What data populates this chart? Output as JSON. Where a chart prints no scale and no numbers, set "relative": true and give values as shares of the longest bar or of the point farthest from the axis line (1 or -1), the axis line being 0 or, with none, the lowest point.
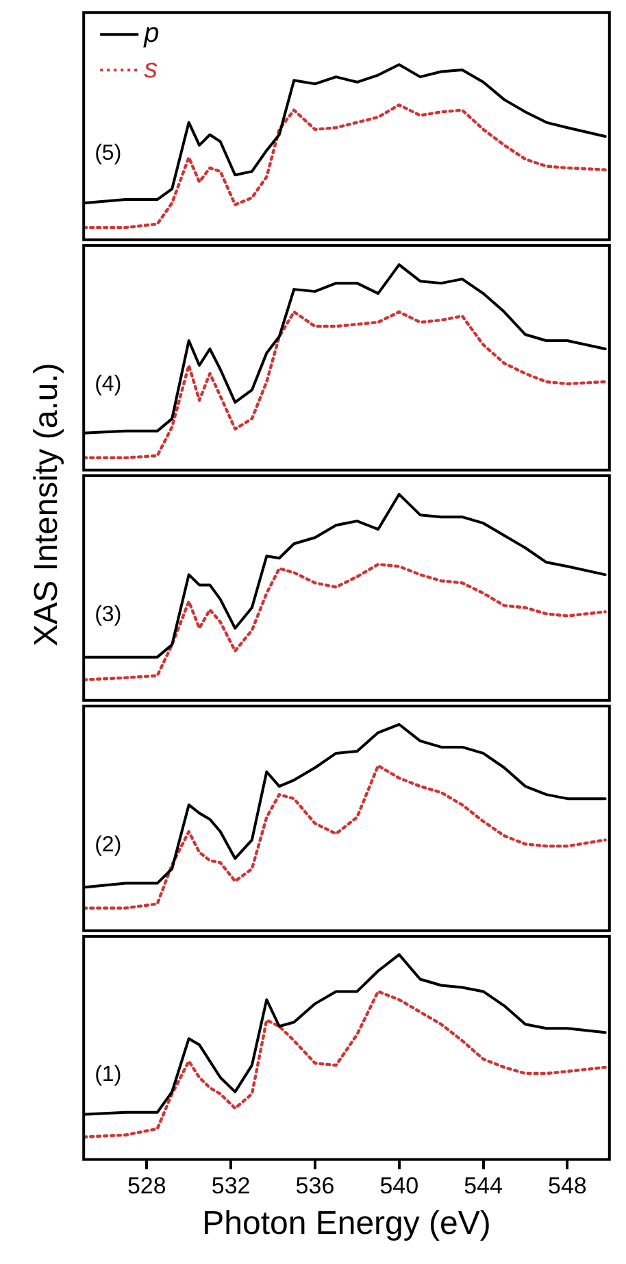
{
  "chart_data": [
    {
      "type": "line",
      "relative": true,
      "legend": "top left",
      "tick_labels": false,
      "marker": "none",
      "xlim": [
        525,
        550
      ],
      "annotations": [
        "(5)"
      ],
      "x": [
        525,
        527,
        528.5,
        529.2,
        530,
        530.5,
        531,
        531.5,
        532.2,
        533,
        533.7,
        534.3,
        535,
        536,
        537,
        538,
        539,
        540,
        541,
        542,
        543,
        544,
        545,
        546,
        547,
        548,
        549.8
      ],
      "series": [
        {
          "name": "p",
          "color": "#000000",
          "line_style": "solid",
          "values": [
            0.21,
            0.23,
            0.23,
            0.29,
            0.67,
            0.54,
            0.6,
            0.56,
            0.37,
            0.39,
            0.51,
            0.6,
            0.91,
            0.89,
            0.93,
            0.9,
            0.94,
            1,
            0.93,
            0.96,
            0.97,
            0.9,
            0.8,
            0.73,
            0.67,
            0.64,
            0.59
          ]
        },
        {
          "name": "s",
          "color": "#d03535",
          "line_style": "dotted",
          "values": [
            0.07,
            0.07,
            0.09,
            0.21,
            0.47,
            0.33,
            0.41,
            0.39,
            0.2,
            0.24,
            0.36,
            0.63,
            0.74,
            0.63,
            0.64,
            0.67,
            0.7,
            0.77,
            0.71,
            0.73,
            0.74,
            0.63,
            0.54,
            0.46,
            0.42,
            0.41,
            0.4
          ]
        }
      ]
    },
    {
      "type": "line",
      "relative": true,
      "tick_labels": false,
      "marker": "none",
      "xlim": [
        525,
        550
      ],
      "annotations": [
        "(4)"
      ],
      "x": [
        525,
        527,
        528.5,
        529.2,
        530,
        530.5,
        531,
        531.5,
        532.2,
        533,
        533.7,
        534.3,
        535,
        536,
        537,
        538,
        539,
        540,
        541,
        542,
        543,
        544,
        545,
        546,
        547,
        548,
        549.8
      ],
      "series": [
        {
          "color": "#000000",
          "line_style": "solid",
          "values": [
            0.18,
            0.19,
            0.19,
            0.25,
            0.63,
            0.51,
            0.59,
            0.49,
            0.33,
            0.39,
            0.57,
            0.65,
            0.88,
            0.87,
            0.91,
            0.91,
            0.86,
            1,
            0.92,
            0.91,
            0.93,
            0.86,
            0.77,
            0.66,
            0.63,
            0.63,
            0.59
          ]
        },
        {
          "color": "#d03535",
          "line_style": "dotted",
          "values": [
            0.06,
            0.06,
            0.07,
            0.21,
            0.51,
            0.34,
            0.47,
            0.36,
            0.2,
            0.25,
            0.43,
            0.65,
            0.77,
            0.7,
            0.7,
            0.71,
            0.72,
            0.77,
            0.72,
            0.73,
            0.75,
            0.61,
            0.52,
            0.47,
            0.43,
            0.42,
            0.43
          ]
        }
      ]
    },
    {
      "type": "line",
      "relative": true,
      "tick_labels": false,
      "marker": "none",
      "xlim": [
        525,
        550
      ],
      "ylabel": "XAS Intensity (a.u.)",
      "annotations": [
        "(3)"
      ],
      "x": [
        525,
        527,
        528.5,
        529.2,
        530,
        530.5,
        531,
        531.5,
        532.2,
        533,
        533.7,
        534.3,
        535,
        536,
        537,
        538,
        539,
        540,
        541,
        542,
        543,
        544,
        545,
        546,
        547,
        548,
        549.8
      ],
      "series": [
        {
          "color": "#000000",
          "line_style": "solid",
          "values": [
            0.21,
            0.21,
            0.21,
            0.27,
            0.61,
            0.56,
            0.56,
            0.49,
            0.35,
            0.45,
            0.7,
            0.69,
            0.76,
            0.79,
            0.85,
            0.87,
            0.83,
            1,
            0.9,
            0.89,
            0.89,
            0.86,
            0.8,
            0.74,
            0.67,
            0.65,
            0.61
          ]
        },
        {
          "color": "#d03535",
          "line_style": "dotted",
          "values": [
            0.1,
            0.11,
            0.12,
            0.27,
            0.48,
            0.35,
            0.44,
            0.38,
            0.24,
            0.34,
            0.52,
            0.64,
            0.62,
            0.57,
            0.55,
            0.6,
            0.66,
            0.65,
            0.61,
            0.58,
            0.57,
            0.52,
            0.46,
            0.45,
            0.42,
            0.41,
            0.43
          ]
        }
      ]
    },
    {
      "type": "line",
      "relative": true,
      "tick_labels": false,
      "marker": "none",
      "xlim": [
        525,
        550
      ],
      "annotations": [
        "(2)"
      ],
      "x": [
        525,
        527,
        528.5,
        529.2,
        530,
        530.5,
        531,
        531.5,
        532.2,
        533,
        533.7,
        534.3,
        535,
        536,
        537,
        538,
        539,
        540,
        541,
        542,
        543,
        544,
        545,
        546,
        547,
        548,
        549.8
      ],
      "series": [
        {
          "color": "#000000",
          "line_style": "solid",
          "values": [
            0.21,
            0.23,
            0.23,
            0.3,
            0.61,
            0.57,
            0.54,
            0.48,
            0.35,
            0.44,
            0.77,
            0.7,
            0.73,
            0.79,
            0.86,
            0.87,
            0.96,
            1,
            0.92,
            0.89,
            0.89,
            0.86,
            0.79,
            0.7,
            0.66,
            0.64,
            0.64
          ]
        },
        {
          "color": "#d03535",
          "line_style": "dotted",
          "values": [
            0.11,
            0.11,
            0.13,
            0.32,
            0.48,
            0.38,
            0.34,
            0.33,
            0.24,
            0.3,
            0.55,
            0.66,
            0.64,
            0.52,
            0.47,
            0.55,
            0.8,
            0.74,
            0.7,
            0.67,
            0.61,
            0.53,
            0.46,
            0.42,
            0.41,
            0.41,
            0.44
          ]
        }
      ]
    },
    {
      "type": "line",
      "relative": true,
      "tick_labels": "x",
      "marker": "none",
      "xlim": [
        525,
        550
      ],
      "xlabel": "Photon Energy (eV)",
      "annotations": [
        "(1)"
      ],
      "xticks": [
        528,
        532,
        536,
        540,
        544,
        548
      ],
      "x": [
        525,
        527,
        528.5,
        529.2,
        530,
        530.5,
        531,
        531.5,
        532.2,
        533,
        533.7,
        534.3,
        535,
        536,
        537,
        538,
        539,
        540,
        541,
        542,
        543,
        544,
        545,
        546,
        547,
        548,
        549.8
      ],
      "series": [
        {
          "color": "#000000",
          "line_style": "solid",
          "values": [
            0.22,
            0.23,
            0.23,
            0.33,
            0.59,
            0.56,
            0.48,
            0.4,
            0.33,
            0.46,
            0.78,
            0.65,
            0.67,
            0.76,
            0.82,
            0.82,
            0.92,
            1,
            0.88,
            0.85,
            0.84,
            0.82,
            0.75,
            0.66,
            0.64,
            0.64,
            0.62
          ]
        },
        {
          "color": "#d03535",
          "line_style": "dotted",
          "values": [
            0.11,
            0.12,
            0.15,
            0.32,
            0.48,
            0.4,
            0.35,
            0.32,
            0.25,
            0.32,
            0.68,
            0.65,
            0.58,
            0.47,
            0.46,
            0.61,
            0.82,
            0.78,
            0.72,
            0.66,
            0.58,
            0.49,
            0.45,
            0.42,
            0.42,
            0.43,
            0.45
          ]
        }
      ]
    }
  ]
}
